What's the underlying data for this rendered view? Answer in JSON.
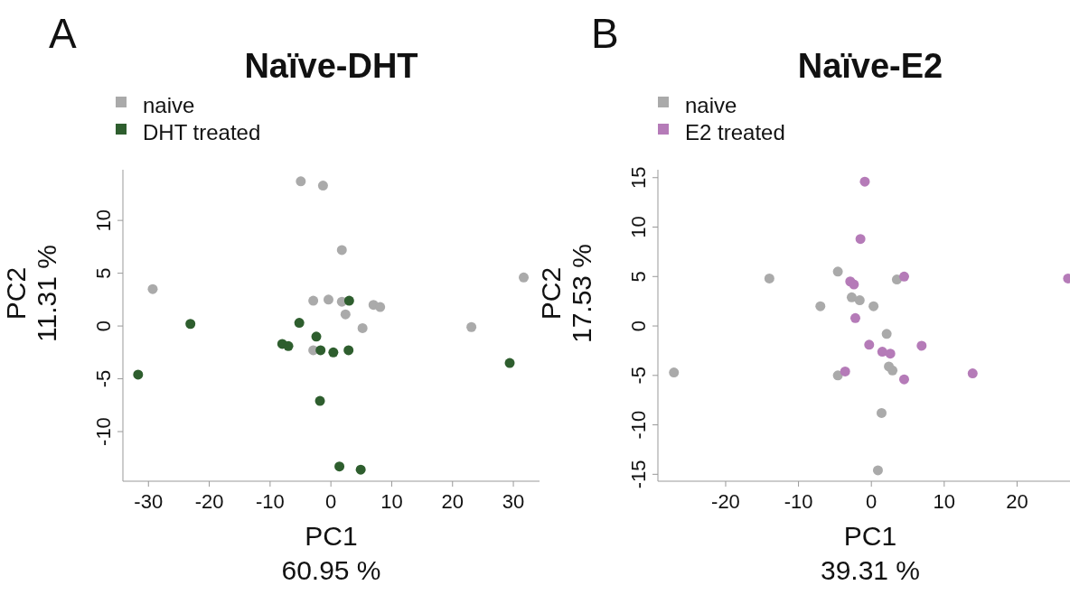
{
  "chart_data": [
    {
      "type": "scatter",
      "title": "Naïve-DHT",
      "xlabel": "PC1\n60.95 %",
      "ylabel": "PC2\n11.31 %",
      "annotations": [
        "A"
      ],
      "legend": "top left",
      "marker": "circle",
      "xlim": [
        -34.2,
        34.3
      ],
      "ylim": [
        -14.7,
        14.8
      ],
      "xticks": [
        -30,
        -20,
        -10,
        0,
        10,
        20,
        30
      ],
      "yticks": [
        -10,
        -5,
        0,
        5,
        10
      ],
      "series": [
        {
          "name": "naive",
          "color": "#aaaaaa",
          "x": [
            -4.95,
            -1.3,
            1.8,
            -29.3,
            31.7,
            -2.9,
            -0.4,
            1.8,
            7.0,
            8.1,
            2.4,
            5.2,
            23.1,
            -2.9
          ],
          "values": [
            13.7,
            13.3,
            7.2,
            3.5,
            4.6,
            2.4,
            2.5,
            2.3,
            2.0,
            1.8,
            1.1,
            -0.2,
            -0.1,
            -2.3
          ]
        },
        {
          "name": "DHT treated",
          "color": "#2e5e2e",
          "x": [
            3.0,
            -23.1,
            -5.2,
            -2.4,
            -8.0,
            -7.0,
            -1.7,
            0.4,
            2.9,
            -31.7,
            29.4,
            -1.8,
            1.4,
            4.9
          ],
          "values": [
            2.4,
            0.2,
            0.3,
            -1.0,
            -1.7,
            -1.9,
            -2.3,
            -2.5,
            -2.3,
            -4.6,
            -3.5,
            -7.1,
            -13.3,
            -13.6
          ]
        }
      ]
    },
    {
      "type": "scatter",
      "title": "Naïve-E2",
      "xlabel": "PC1\n39.31 %",
      "ylabel": "PC2\n17.53 %",
      "annotations": [
        "B"
      ],
      "legend": "top left",
      "marker": "circle",
      "xlim": [
        -29.3,
        29
      ],
      "ylim": [
        -15.7,
        15.8
      ],
      "xticks": [
        -20,
        -10,
        0,
        10,
        20
      ],
      "yticks": [
        -15,
        -10,
        -5,
        0,
        5,
        10,
        15
      ],
      "series": [
        {
          "name": "naive",
          "color": "#aaaaaa",
          "x": [
            -27.1,
            -14.0,
            -4.6,
            -7.0,
            -2.7,
            -1.6,
            0.3,
            3.5,
            2.1,
            2.4,
            2.9,
            -4.6,
            1.4,
            0.9
          ],
          "values": [
            -4.7,
            4.8,
            5.5,
            2.0,
            2.9,
            2.6,
            2.0,
            4.7,
            -0.8,
            -4.1,
            -4.5,
            -5.0,
            -8.8,
            -14.6
          ]
        },
        {
          "name": "E2 treated",
          "color": "#b57bb8",
          "x": [
            -0.9,
            -1.5,
            -2.9,
            -2.4,
            -2.2,
            4.5,
            27.0,
            -0.3,
            1.5,
            2.6,
            6.9,
            -3.6,
            4.5,
            13.9
          ],
          "values": [
            14.6,
            8.8,
            4.5,
            4.2,
            0.8,
            5.0,
            4.8,
            -1.9,
            -2.6,
            -2.8,
            -2.0,
            -4.6,
            -5.4,
            -4.8
          ]
        }
      ]
    }
  ]
}
